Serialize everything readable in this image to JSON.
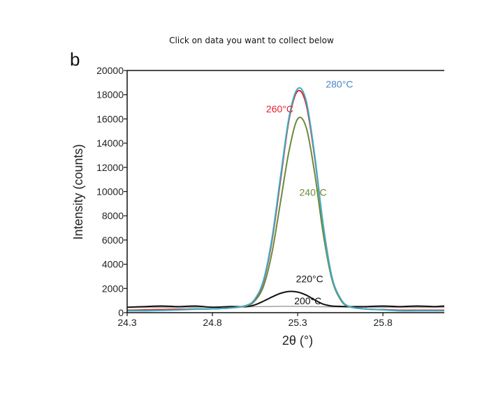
{
  "instruction": "Click on data you want to collect below",
  "chart_data": {
    "type": "line",
    "panel_label": "b",
    "title": "",
    "xlabel": "2θ (°)",
    "ylabel": "Intensity (counts)",
    "xlim": [
      24.3,
      26.16
    ],
    "ylim": [
      0,
      20000
    ],
    "x_ticks": [
      24.3,
      24.8,
      25.3,
      25.8
    ],
    "x_tick_labels": [
      "24.3",
      "24.8",
      "25.3",
      "25.8"
    ],
    "y_ticks": [
      0,
      2000,
      4000,
      6000,
      8000,
      10000,
      12000,
      14000,
      16000,
      18000,
      20000
    ],
    "y_tick_labels": [
      "0",
      "2000",
      "4000",
      "6000",
      "8000",
      "10000",
      "12000",
      "14000",
      "16000",
      "18000",
      "20000"
    ],
    "grid": false,
    "x": [
      24.3,
      24.4,
      24.5,
      24.6,
      24.7,
      24.8,
      24.9,
      25.0,
      25.05,
      25.1,
      25.15,
      25.2,
      25.25,
      25.3,
      25.35,
      25.4,
      25.45,
      25.5,
      25.55,
      25.6,
      25.7,
      25.8,
      25.9,
      26.0,
      26.1,
      26.16
    ],
    "series": [
      {
        "name": "200°C",
        "color": "#9a9a9a",
        "values": [
          450,
          450,
          450,
          450,
          460,
          470,
          480,
          490,
          500,
          500,
          510,
          520,
          520,
          520,
          510,
          500,
          490,
          480,
          470,
          460,
          450,
          450,
          450,
          450,
          450,
          450
        ]
      },
      {
        "name": "220°C",
        "color": "#111111",
        "values": [
          450,
          500,
          550,
          500,
          550,
          450,
          500,
          500,
          650,
          950,
          1300,
          1600,
          1750,
          1700,
          1450,
          1050,
          700,
          550,
          520,
          500,
          500,
          550,
          500,
          550,
          500,
          550
        ]
      },
      {
        "name": "240°C",
        "color": "#6b8a3a",
        "values": [
          200,
          220,
          250,
          280,
          300,
          320,
          380,
          560,
          1000,
          2200,
          5000,
          9200,
          13400,
          16000,
          15300,
          11500,
          6500,
          2800,
          1100,
          500,
          300,
          250,
          200,
          200,
          200,
          200
        ]
      },
      {
        "name": "260°C",
        "color": "#e8202a",
        "values": [
          200,
          220,
          250,
          280,
          300,
          320,
          380,
          600,
          1100,
          2600,
          6000,
          11000,
          16000,
          18300,
          17200,
          12800,
          7200,
          3000,
          1200,
          520,
          300,
          250,
          200,
          200,
          200,
          200
        ]
      },
      {
        "name": "280°C",
        "color": "#3ab0c8",
        "values": [
          150,
          150,
          180,
          220,
          280,
          320,
          380,
          600,
          1150,
          2700,
          6200,
          11300,
          16200,
          18500,
          17500,
          13000,
          7200,
          3000,
          1200,
          520,
          300,
          230,
          150,
          150,
          150,
          150
        ]
      }
    ],
    "annotations": [
      {
        "text": "280°C",
        "color": "#4a86c8",
        "x": 25.465,
        "y": 18600
      },
      {
        "text": "260°C",
        "color": "#e8202a",
        "x": 25.115,
        "y": 16550
      },
      {
        "text": "240°C",
        "color": "#6b8a3a",
        "x": 25.31,
        "y": 9650
      },
      {
        "text": "220°C",
        "color": "#111111",
        "x": 25.29,
        "y": 2500
      },
      {
        "text": "200°C",
        "color": "#111111",
        "x": 25.28,
        "y": 700
      }
    ]
  }
}
